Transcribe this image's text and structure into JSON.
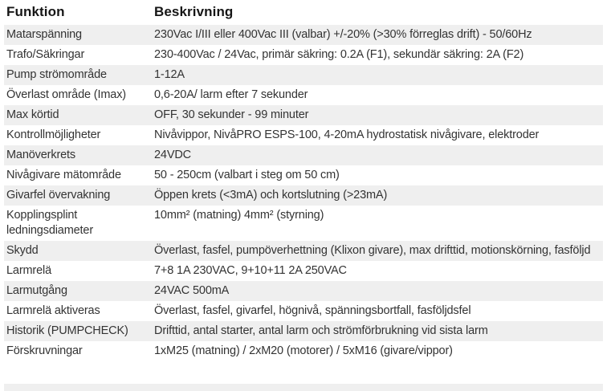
{
  "table": {
    "headers": {
      "col1": "Funktion",
      "col2": "Beskrivning"
    },
    "rows": [
      {
        "funktion": "Matarspänning",
        "beskrivning": "230Vac I/III eller 400Vac III (valbar) +/-20% (>30% förreglas drift) - 50/60Hz"
      },
      {
        "funktion": "Trafo/Säkringar",
        "beskrivning": "230-400Vac / 24Vac, primär säkring: 0.2A (F1), sekundär säkring: 2A (F2)"
      },
      {
        "funktion": "Pump strömområde",
        "beskrivning": "1-12A"
      },
      {
        "funktion": "Överlast område (Imax)",
        "beskrivning": "0,6-20A/ larm efter 7 sekunder"
      },
      {
        "funktion": "Max körtid",
        "beskrivning": "OFF, 30 sekunder - 99 minuter"
      },
      {
        "funktion": "Kontrollmöjligheter",
        "beskrivning": "Nivåvippor, NivåPRO ESPS-100, 4-20mA hydrostatisk nivågivare, elektroder"
      },
      {
        "funktion": "Manöverkrets",
        "beskrivning": "24VDC"
      },
      {
        "funktion": "Nivågivare mätområde",
        "beskrivning": "50 - 250cm (valbart i steg om 50 cm)"
      },
      {
        "funktion": "Givarfel övervakning",
        "beskrivning": "Öppen krets (<3mA) och kortslutning (>23mA)"
      },
      {
        "funktion": "Kopplingsplint ledningsdiameter",
        "beskrivning": "10mm² (matning) 4mm² (styrning)"
      },
      {
        "funktion": "Skydd",
        "beskrivning": "Överlast, fasfel, pumpöverhettning (Klixon givare), max drifttid, motionskörning, fasföljd"
      },
      {
        "funktion": "Larmrelä",
        "beskrivning": "7+8 1A 230VAC, 9+10+11 2A 250VAC"
      },
      {
        "funktion": "Larmutgång",
        "beskrivning": "24VAC 500mA"
      },
      {
        "funktion": "Larmrelä aktiveras",
        "beskrivning": "Överlast, fasfel, givarfel, högnivå, spänningsbortfall, fasföljdsfel"
      },
      {
        "funktion": "Historik (PUMPCHECK)",
        "beskrivning": "Drifttid, antal starter, antal larm och strömförbrukning vid sista larm"
      },
      {
        "funktion": "Förskruvningar",
        "beskrivning": "1xM25 (matning) / 2xM20 (motorer) / 5xM16 (givare/vippor)"
      }
    ],
    "colors": {
      "row_alt_background": "#efefef",
      "row_base_background": "#ffffff",
      "body_text": "#333333",
      "header_text": "#161616"
    }
  }
}
